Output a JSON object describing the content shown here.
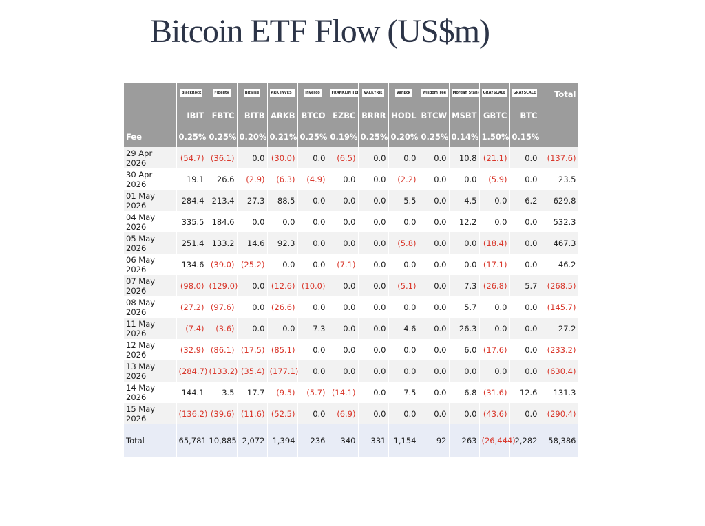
{
  "title": "Bitcoin ETF Flow (US$m)",
  "table": {
    "logos": [
      "BlackRock",
      "Fidelity",
      "Bitwise",
      "ARK INVEST",
      "Invesco",
      "FRANKLIN TEMPLETON",
      "VALKYRIE",
      "VanEck",
      "WisdomTree",
      "Morgan Stanley",
      "GRAYSCALE",
      "GRAYSCALE"
    ],
    "total_header": "Total",
    "tickers": [
      "IBIT",
      "FBTC",
      "BITB",
      "ARKB",
      "BTCO",
      "EZBC",
      "BRRR",
      "HODL",
      "BTCW",
      "MSBT",
      "GBTC",
      "BTC"
    ],
    "fee_label": "Fee",
    "fees": [
      "0.25%",
      "0.25%",
      "0.20%",
      "0.21%",
      "0.25%",
      "0.19%",
      "0.25%",
      "0.20%",
      "0.25%",
      "0.14%",
      "1.50%",
      "0.15%"
    ],
    "rows": [
      {
        "date": "29 Apr 2026",
        "values": [
          "(54.7)",
          "(36.1)",
          "0.0",
          "(30.0)",
          "0.0",
          "(6.5)",
          "0.0",
          "0.0",
          "0.0",
          "10.8",
          "(21.1)",
          "0.0",
          "(137.6)"
        ]
      },
      {
        "date": "30 Apr 2026",
        "values": [
          "19.1",
          "26.6",
          "(2.9)",
          "(6.3)",
          "(4.9)",
          "0.0",
          "0.0",
          "(2.2)",
          "0.0",
          "0.0",
          "(5.9)",
          "0.0",
          "23.5"
        ]
      },
      {
        "date": "01 May 2026",
        "values": [
          "284.4",
          "213.4",
          "27.3",
          "88.5",
          "0.0",
          "0.0",
          "0.0",
          "5.5",
          "0.0",
          "4.5",
          "0.0",
          "6.2",
          "629.8"
        ]
      },
      {
        "date": "04 May 2026",
        "values": [
          "335.5",
          "184.6",
          "0.0",
          "0.0",
          "0.0",
          "0.0",
          "0.0",
          "0.0",
          "0.0",
          "12.2",
          "0.0",
          "0.0",
          "532.3"
        ]
      },
      {
        "date": "05 May 2026",
        "values": [
          "251.4",
          "133.2",
          "14.6",
          "92.3",
          "0.0",
          "0.0",
          "0.0",
          "(5.8)",
          "0.0",
          "0.0",
          "(18.4)",
          "0.0",
          "467.3"
        ]
      },
      {
        "date": "06 May 2026",
        "values": [
          "134.6",
          "(39.0)",
          "(25.2)",
          "0.0",
          "0.0",
          "(7.1)",
          "0.0",
          "0.0",
          "0.0",
          "0.0",
          "(17.1)",
          "0.0",
          "46.2"
        ]
      },
      {
        "date": "07 May 2026",
        "values": [
          "(98.0)",
          "(129.0)",
          "0.0",
          "(12.6)",
          "(10.0)",
          "0.0",
          "0.0",
          "(5.1)",
          "0.0",
          "7.3",
          "(26.8)",
          "5.7",
          "(268.5)"
        ]
      },
      {
        "date": "08 May 2026",
        "values": [
          "(27.2)",
          "(97.6)",
          "0.0",
          "(26.6)",
          "0.0",
          "0.0",
          "0.0",
          "0.0",
          "0.0",
          "5.7",
          "0.0",
          "0.0",
          "(145.7)"
        ]
      },
      {
        "date": "11 May 2026",
        "values": [
          "(7.4)",
          "(3.6)",
          "0.0",
          "0.0",
          "7.3",
          "0.0",
          "0.0",
          "4.6",
          "0.0",
          "26.3",
          "0.0",
          "0.0",
          "27.2"
        ]
      },
      {
        "date": "12 May 2026",
        "values": [
          "(32.9)",
          "(86.1)",
          "(17.5)",
          "(85.1)",
          "0.0",
          "0.0",
          "0.0",
          "0.0",
          "0.0",
          "6.0",
          "(17.6)",
          "0.0",
          "(233.2)"
        ]
      },
      {
        "date": "13 May 2026",
        "values": [
          "(284.7)",
          "(133.2)",
          "(35.4)",
          "(177.1)",
          "0.0",
          "0.0",
          "0.0",
          "0.0",
          "0.0",
          "0.0",
          "0.0",
          "0.0",
          "(630.4)"
        ]
      },
      {
        "date": "14 May 2026",
        "values": [
          "144.1",
          "3.5",
          "17.7",
          "(9.5)",
          "(5.7)",
          "(14.1)",
          "0.0",
          "7.5",
          "0.0",
          "6.8",
          "(31.6)",
          "12.6",
          "131.3"
        ]
      },
      {
        "date": "15 May 2026",
        "values": [
          "(136.2)",
          "(39.6)",
          "(11.6)",
          "(52.5)",
          "0.0",
          "(6.9)",
          "0.0",
          "0.0",
          "0.0",
          "0.0",
          "(43.6)",
          "0.0",
          "(290.4)"
        ]
      }
    ],
    "total_row": {
      "label": "Total",
      "values": [
        "65,781",
        "10,885",
        "2,072",
        "1,394",
        "236",
        "340",
        "331",
        "1,154",
        "92",
        "263",
        "(26,444)",
        "2,282",
        "58,386"
      ]
    }
  }
}
